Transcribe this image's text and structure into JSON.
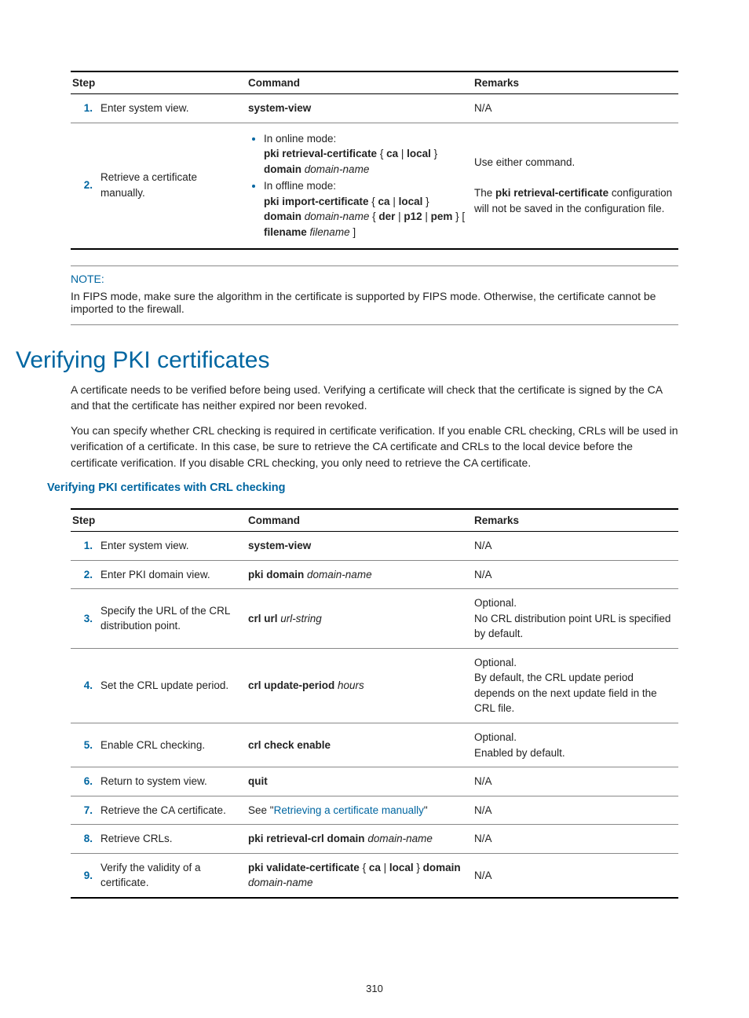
{
  "table1": {
    "headers": {
      "step": "Step",
      "command": "Command",
      "remarks": "Remarks"
    },
    "rows": [
      {
        "num": "1.",
        "step": "Enter system view.",
        "command_html": "<span class='bold'>system-view</span>",
        "remarks_html": "N/A"
      },
      {
        "num": "2.",
        "step": "Retrieve a certificate manually.",
        "command_html": "<ul class='inline'><li><span>In online mode:<br><span class='bold'>pki retrieval-certificate</span> { <span class='bold'>ca</span> | <span class='bold'>local</span> } <span class='bold'>domain</span> <span class='italic'>domain-name</span></span></li><li><span>In offline mode:<br><span class='bold'>pki import-certificate</span> { <span class='bold'>ca</span> | <span class='bold'>local</span> } <span class='bold'>domain</span> <span class='italic'>domain-name</span> { <span class='bold'>der</span> | <span class='bold'>p12</span> | <span class='bold'>pem</span> } [ <span class='bold'>filename</span> <span class='italic'>filename</span> ]</span></li></ul>",
        "remarks_html": "Use either command.<br><br>The <span class='bold'>pki retrieval-certificate</span> configuration will not be saved in the configuration file."
      }
    ]
  },
  "note": {
    "label": "NOTE:",
    "text": "In FIPS mode, make sure the algorithm in the certificate is supported by FIPS mode. Otherwise, the certificate cannot be imported to the firewall."
  },
  "section_title": "Verifying PKI certificates",
  "para1": "A certificate needs to be verified before being used. Verifying a certificate will check that the certificate is signed by the CA and that the certificate has neither expired nor been revoked.",
  "para2": "You can specify whether CRL checking is required in certificate verification. If you enable CRL checking, CRLs will be used in verification of a certificate. In this case, be sure to retrieve the CA certificate and CRLs to the local device before the certificate verification. If you disable CRL checking, you only need to retrieve the CA certificate.",
  "subhead": "Verifying PKI certificates with CRL checking",
  "table2": {
    "headers": {
      "step": "Step",
      "command": "Command",
      "remarks": "Remarks"
    },
    "rows": [
      {
        "num": "1.",
        "step": "Enter system view.",
        "command_html": "<span class='bold'>system-view</span>",
        "remarks_html": "N/A"
      },
      {
        "num": "2.",
        "step": "Enter PKI domain view.",
        "command_html": "<span class='bold'>pki domain</span> <span class='italic'>domain-name</span>",
        "remarks_html": "N/A"
      },
      {
        "num": "3.",
        "step": "Specify the URL of the CRL distribution point.",
        "command_html": "<span class='bold'>crl url</span> <span class='italic'>url-string</span>",
        "remarks_html": "Optional.<br>No CRL distribution point URL is specified by default."
      },
      {
        "num": "4.",
        "step": "Set the CRL update period.",
        "command_html": "<span class='bold'>crl update-period</span> <span class='italic'>hours</span>",
        "remarks_html": "Optional.<br>By default, the CRL update period depends on the next update field in the CRL file."
      },
      {
        "num": "5.",
        "step": "Enable CRL checking.",
        "command_html": "<span class='bold'>crl check enable</span>",
        "remarks_html": "Optional.<br>Enabled by default."
      },
      {
        "num": "6.",
        "step": "Return to system view.",
        "command_html": "<span class='bold'>quit</span>",
        "remarks_html": "N/A"
      },
      {
        "num": "7.",
        "step": "Retrieve the CA certificate.",
        "command_html": "See \"<span class='link'>Retrieving a certificate manually</span>\"",
        "remarks_html": "N/A"
      },
      {
        "num": "8.",
        "step": "Retrieve CRLs.",
        "command_html": "<span class='bold'>pki retrieval-crl domain</span> <span class='italic'>domain-name</span>",
        "remarks_html": "N/A"
      },
      {
        "num": "9.",
        "step": "Verify the validity of a certificate.",
        "command_html": "<span class='bold'>pki validate-certificate</span> { <span class='bold'>ca</span> | <span class='bold'>local</span> } <span class='bold'>domain</span> <span class='italic'>domain-name</span>",
        "remarks_html": "N/A"
      }
    ]
  },
  "page_number": "310"
}
